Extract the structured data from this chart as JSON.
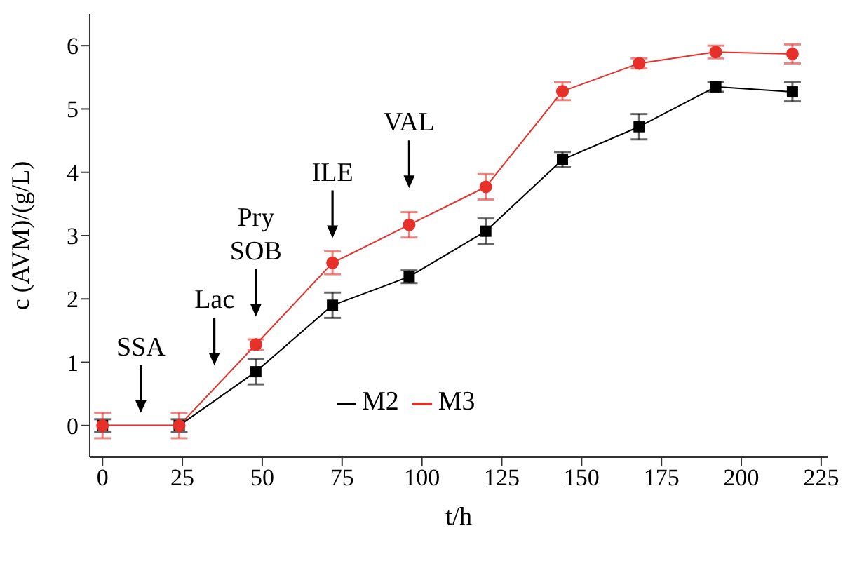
{
  "chart_data": {
    "type": "line",
    "xlabel": "t/h",
    "ylabel": "c (AVM)/(g/L)",
    "x": [
      0,
      24,
      48,
      72,
      96,
      120,
      144,
      168,
      192,
      216
    ],
    "series": [
      {
        "name": "M2",
        "color": "#000000",
        "marker": "square",
        "values": [
          0,
          0,
          0.85,
          1.9,
          2.35,
          3.07,
          4.2,
          4.72,
          5.35,
          5.27
        ],
        "errors": [
          0.1,
          0.1,
          0.2,
          0.2,
          0.1,
          0.2,
          0.12,
          0.2,
          0.08,
          0.15
        ]
      },
      {
        "name": "M3",
        "color": "#e8302a",
        "marker": "circle",
        "values": [
          0,
          0,
          1.28,
          2.57,
          3.17,
          3.77,
          5.28,
          5.72,
          5.9,
          5.87
        ],
        "errors": [
          0.2,
          0.2,
          0.08,
          0.18,
          0.2,
          0.2,
          0.14,
          0.08,
          0.1,
          0.15
        ]
      }
    ],
    "xlim": [
      -4,
      227
    ],
    "xticks": [
      0,
      25,
      50,
      75,
      100,
      125,
      150,
      175,
      200,
      225
    ],
    "ylim": [
      -0.5,
      6.5
    ],
    "yticks": [
      0,
      1,
      2,
      3,
      4,
      5,
      6
    ],
    "grid": false,
    "legend": "bottom",
    "annotations": [
      "SSA",
      "Lac",
      "Pry\nSOB",
      "ILE",
      "VAL"
    ]
  }
}
